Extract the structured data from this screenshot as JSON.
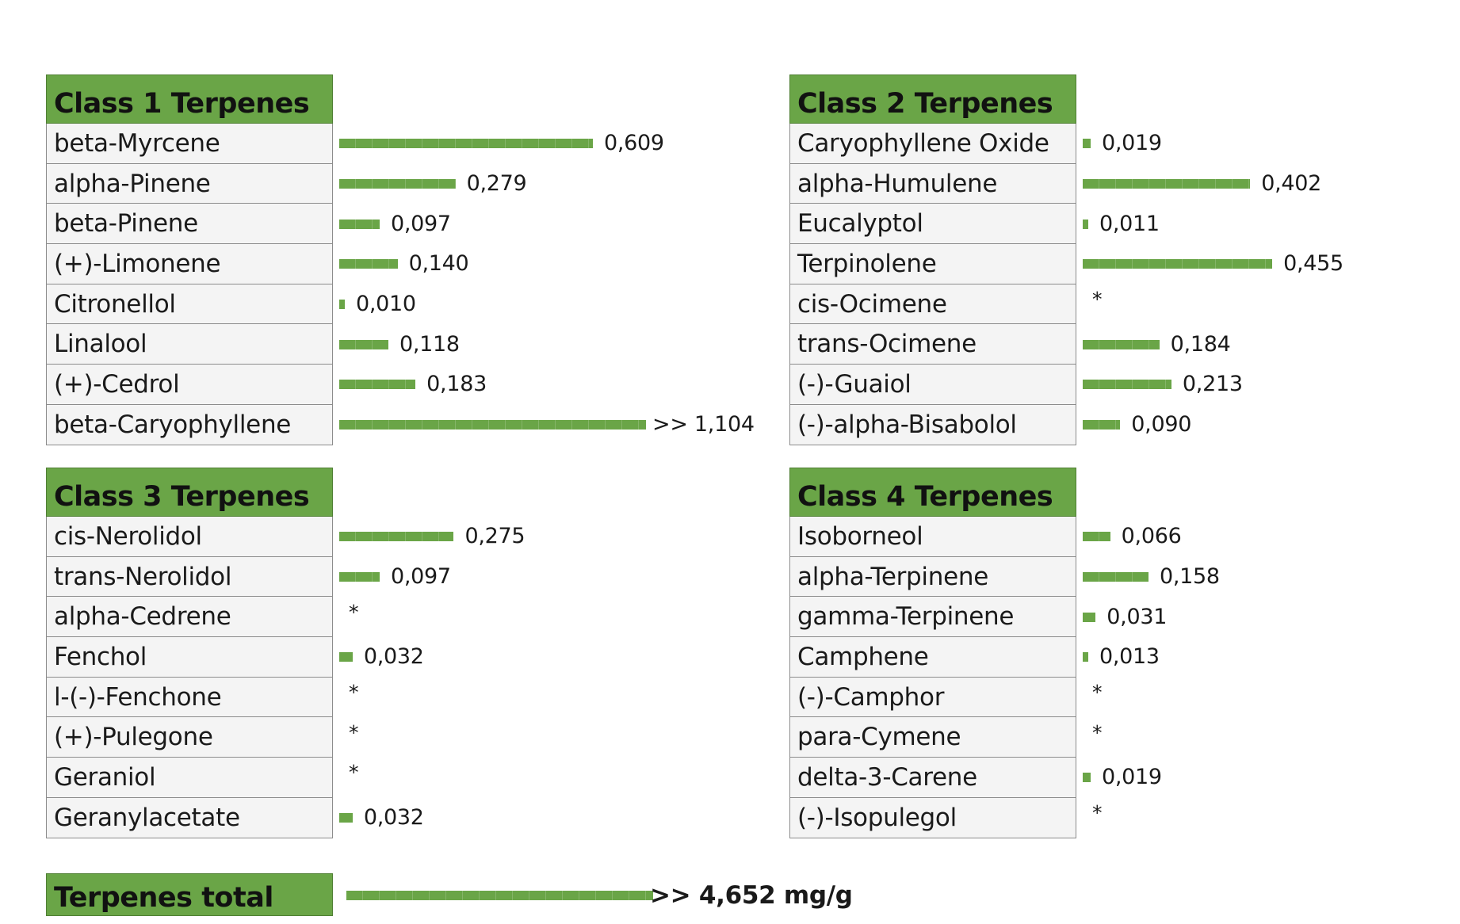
{
  "chart_data": [
    {
      "type": "bar",
      "title": "Class 1 Terpenes",
      "categories": [
        "beta-Myrcene",
        "alpha-Pinene",
        "beta-Pinene",
        "(+)-Limonene",
        "Citronellol",
        "Linalool",
        "(+)-Cedrol",
        "beta-Caryophyllene"
      ],
      "values": [
        0.609,
        0.279,
        0.097,
        0.14,
        0.01,
        0.118,
        0.183,
        1.104
      ],
      "labels": [
        "0,609",
        "0,279",
        "0,097",
        "0,140",
        "0,010",
        "0,118",
        "0,183",
        ">> 1,104"
      ]
    },
    {
      "type": "bar",
      "title": "Class 2 Terpenes",
      "categories": [
        "Caryophyllene Oxide",
        "alpha-Humulene",
        "Eucalyptol",
        "Terpinolene",
        "cis-Ocimene",
        "trans-Ocimene",
        "(-)-Guaiol",
        "(-)-alpha-Bisabolol"
      ],
      "values": [
        0.019,
        0.402,
        0.011,
        0.455,
        null,
        0.184,
        0.213,
        0.09
      ],
      "labels": [
        "0,019",
        "0,402",
        "0,011",
        "0,455",
        "*",
        "0,184",
        "0,213",
        "0,090"
      ]
    },
    {
      "type": "bar",
      "title": "Class 3 Terpenes",
      "categories": [
        "cis-Nerolidol",
        "trans-Nerolidol",
        "alpha-Cedrene",
        "Fenchol",
        "l-(-)-Fenchone",
        "(+)-Pulegone",
        "Geraniol",
        "Geranylacetate"
      ],
      "values": [
        0.275,
        0.097,
        null,
        0.032,
        null,
        null,
        null,
        0.032
      ],
      "labels": [
        "0,275",
        "0,097",
        "*",
        "0,032",
        "*",
        "*",
        "*",
        "0,032"
      ]
    },
    {
      "type": "bar",
      "title": "Class 4 Terpenes",
      "categories": [
        "Isoborneol",
        "alpha-Terpinene",
        "gamma-Terpinene",
        "Camphene",
        "(-)-Camphor",
        "para-Cymene",
        "delta-3-Carene",
        "(-)-Isopulegol"
      ],
      "values": [
        0.066,
        0.158,
        0.031,
        0.013,
        null,
        null,
        0.019,
        null
      ],
      "labels": [
        "0,066",
        "0,158",
        "0,031",
        "0,013",
        "*",
        "*",
        "0,019",
        "*"
      ]
    },
    {
      "type": "bar",
      "title": "Terpenes total",
      "categories": [
        "Terpenes total"
      ],
      "values": [
        4.652
      ],
      "labels": [
        ">> 4,652 mg/g"
      ],
      "capped": true
    }
  ],
  "colors": {
    "bar": "#6aa547",
    "header": "#6aa547",
    "cell": "#f4f4f4"
  }
}
